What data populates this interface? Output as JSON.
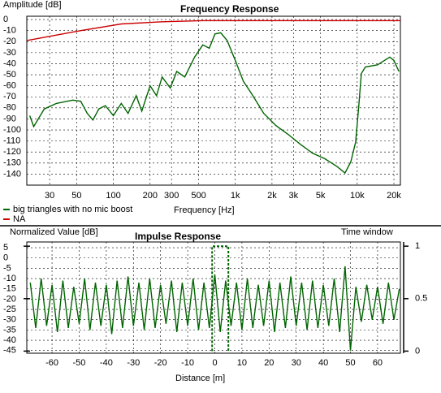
{
  "chart_data": [
    {
      "type": "line",
      "title": "Frequency Response",
      "y_label": "Amplitude [dB]",
      "x_label": "Frequency [Hz]",
      "xscale": "log",
      "xlim": [
        19.5,
        22600
      ],
      "ylim": [
        -150,
        3
      ],
      "grid": true,
      "legend": "bottom-left",
      "xticks": [
        30,
        50,
        100,
        200,
        300,
        500,
        {
          "value": 1000,
          "label": "1k"
        },
        {
          "value": 2000,
          "label": "2k"
        },
        {
          "value": 3000,
          "label": "3k"
        },
        {
          "value": 5000,
          "label": "5k"
        },
        {
          "value": 10000,
          "label": "10k"
        },
        {
          "value": 20000,
          "label": "20k"
        }
      ],
      "yticks": [
        0,
        -10,
        -20,
        -30,
        -40,
        -50,
        -60,
        -70,
        -80,
        -90,
        -100,
        -110,
        -120,
        -130,
        -140
      ],
      "series": [
        {
          "name": "big triangles with no mic boost",
          "color": "#006400",
          "x": [
            20.6,
            22.2,
            27.1,
            34.1,
            46.4,
            54,
            61,
            68,
            76,
            86,
            100,
            116,
            132,
            154,
            171,
            200,
            226,
            251,
            293,
            331,
            385,
            464,
            541,
            612,
            681,
            760,
            858,
            1000,
            1166,
            1359,
            1711,
            2154,
            2712,
            3414,
            4298,
            5412,
            6813,
            7943,
            8850,
            9700,
            10300,
            10800,
            11650,
            14680,
            18480,
            20000,
            22000
          ],
          "values": [
            -87,
            -97,
            -81,
            -76,
            -73,
            -74,
            -85,
            -91,
            -81,
            -78,
            -87,
            -76,
            -85,
            -69,
            -83,
            -60,
            -69,
            -52,
            -62,
            -47,
            -52,
            -34,
            -23,
            -26,
            -13,
            -12,
            -19,
            -37,
            -56,
            -67,
            -85,
            -96,
            -104,
            -113,
            -121,
            -126,
            -133,
            -139,
            -129,
            -111,
            -78,
            -49,
            -43,
            -41,
            -34,
            -37,
            -47
          ]
        },
        {
          "name": "NA",
          "color": "#cc0000",
          "x": [
            19.5,
            54,
            116,
            251,
            541,
            22600
          ],
          "values": [
            -19,
            -10,
            -4,
            -2,
            -1,
            -1
          ]
        }
      ]
    },
    {
      "type": "line",
      "title": "Impulse Response",
      "y_label": "Normalized Value [dB]",
      "y2_label": "Time window",
      "x_label": "Distance [m]",
      "xlim": [
        -69.3,
        68.4
      ],
      "ylim": [
        -46.3,
        7.8
      ],
      "y2lim": [
        -0.02,
        1.04
      ],
      "grid": true,
      "xticks": [
        -60,
        -50,
        -40,
        -30,
        -20,
        -10,
        0,
        10,
        20,
        30,
        40,
        50,
        60
      ],
      "yticks": [
        5,
        0,
        -5,
        -10,
        -15,
        -20,
        -25,
        -30,
        -35,
        -40,
        -45
      ],
      "y2ticks": [
        0,
        0.5,
        1
      ],
      "series": [
        {
          "color": "#006400",
          "x": [
            -68,
            -66,
            -64,
            -62,
            -60,
            -58,
            -56,
            -54,
            -52,
            -50,
            -48,
            -46,
            -44,
            -42,
            -40,
            -38,
            -36,
            -34,
            -32,
            -30,
            -28,
            -26,
            -24,
            -22,
            -20,
            -18,
            -16,
            -14,
            -12,
            -10,
            -8,
            -6,
            -4,
            -2,
            0,
            2,
            4,
            6,
            8,
            10,
            12,
            14,
            16,
            18,
            20,
            22,
            24,
            26,
            28,
            30,
            32,
            34,
            36,
            38,
            40,
            42,
            44,
            46,
            48,
            50,
            52,
            54,
            56,
            58,
            60,
            62,
            64,
            66,
            68
          ],
          "values": [
            -12,
            -34,
            -10,
            -33,
            -13,
            -36,
            -11,
            -34,
            -14,
            -32,
            -10,
            -35,
            -12,
            -33,
            -13,
            -37,
            -11,
            -34,
            -9,
            -33,
            -12,
            -35,
            -10,
            -34,
            -13,
            -32,
            -11,
            -36,
            -12,
            -33,
            -10,
            -35,
            -12,
            -34,
            -8,
            -36,
            -11,
            -33,
            -12,
            -35,
            -10,
            -34,
            -13,
            -33,
            -11,
            -36,
            -12,
            -34,
            -9,
            -33,
            -12,
            -35,
            -11,
            -34,
            -13,
            -33,
            -10,
            -36,
            -4,
            -45,
            -14,
            -31,
            -13,
            -30,
            -14,
            -32,
            -12,
            -30,
            -15
          ]
        },
        {
          "color": "#006400",
          "axis": "y2",
          "dash": true,
          "x": [
            -1,
            -1,
            5,
            5
          ],
          "values": [
            0,
            1,
            1,
            0
          ]
        }
      ]
    }
  ]
}
